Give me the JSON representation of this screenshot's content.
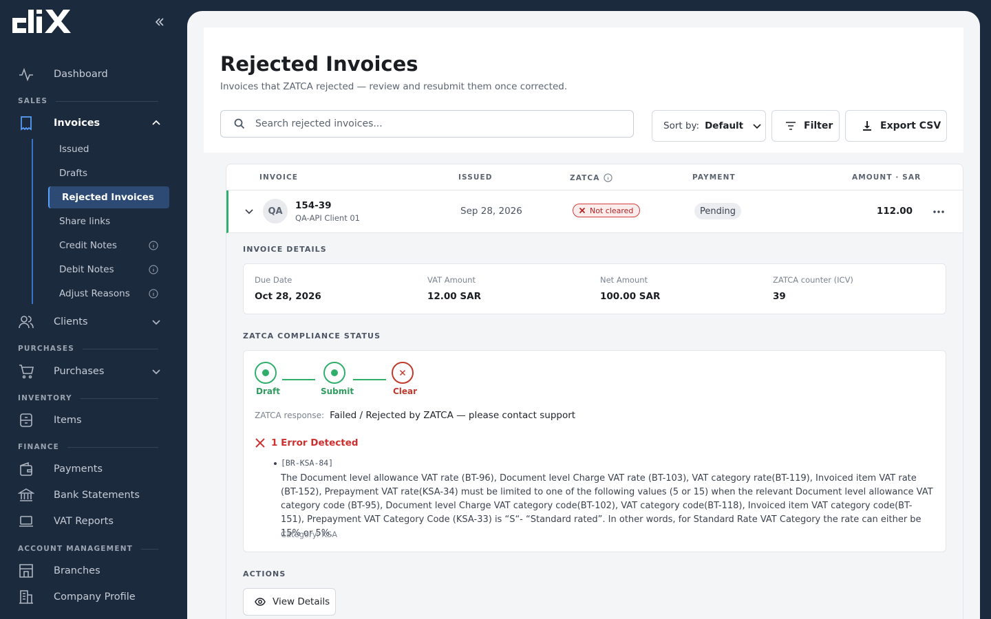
{
  "app": {
    "logo_text": "clix"
  },
  "sidebar": {
    "dashboard": "Dashboard",
    "sections": {
      "sales": "SALES",
      "purchases": "PURCHASES",
      "inventory": "INVENTORY",
      "finance": "FINANCE",
      "account": "ACCOUNT MANAGEMENT"
    },
    "invoices": "Invoices",
    "sub_items": [
      "Issued",
      "Drafts",
      "Rejected Invoices",
      "Share links",
      "Credit Notes",
      "Debit Notes",
      "Adjust Reasons"
    ],
    "clients": "Clients",
    "purchases": "Purchases",
    "items": "Items",
    "payments": "Payments",
    "bank_statements": "Bank Statements",
    "vat_reports": "VAT Reports",
    "branches": "Branches",
    "company_profile": "Company Profile"
  },
  "page": {
    "title": "Rejected Invoices",
    "subtitle": "Invoices that ZATCA rejected — review and resubmit them once corrected.",
    "search_placeholder": "Search rejected invoices...",
    "sort_label": "Sort by:",
    "sort_value": "Default",
    "filter_label": "Filter",
    "export_label": "Export CSV"
  },
  "table": {
    "headers": {
      "invoice": "INVOICE",
      "issued": "ISSUED",
      "zatca": "ZATCA",
      "payment": "PAYMENT",
      "amount": "AMOUNT · SAR"
    },
    "row": {
      "avatar": "QA",
      "number": "154-39",
      "client": "QA-API Client 01",
      "issued": "Sep 28, 2026",
      "zatca_status": "Not cleared",
      "payment_status": "Pending",
      "amount": "112.00"
    }
  },
  "details": {
    "section_title": "INVOICE DETAILS",
    "due_date_label": "Due Date",
    "due_date": "Oct 28, 2026",
    "vat_label": "VAT Amount",
    "vat": "12.00 SAR",
    "net_label": "Net Amount",
    "net": "100.00 SAR",
    "icv_label": "ZATCA counter (ICV)",
    "icv": "39"
  },
  "compliance": {
    "section_title": "ZATCA COMPLIANCE STATUS",
    "steps": [
      "Draft",
      "Submit",
      "Clear"
    ],
    "response_label": "ZATCA response:",
    "response_value": "Failed / Rejected by ZATCA — please contact support",
    "error_heading": "1 Error Detected",
    "error_code": "[BR-KSA-84]",
    "error_message": "The Document level allowance VAT rate (BT-96), Document level Charge VAT rate (BT-103), VAT category rate(BT-119), Invoiced item VAT rate (BT-152), Prepayment VAT rate(KSA-34) must be limited to one of the following values (5 or 15) when the relevant Document level allowance VAT category code (BT-95), Document level Charge VAT category code(BT-102), VAT category code(BT-118), Invoiced item VAT category code(BT-151), Prepayment VAT Category Code (KSA-33) is “S“- “Standard rated”. In other words, for Standard Rate VAT Category the rate can either be 15% or 5%.",
    "error_category": "Category: KSA"
  },
  "actions": {
    "section_title": "ACTIONS",
    "view_details": "View Details"
  }
}
